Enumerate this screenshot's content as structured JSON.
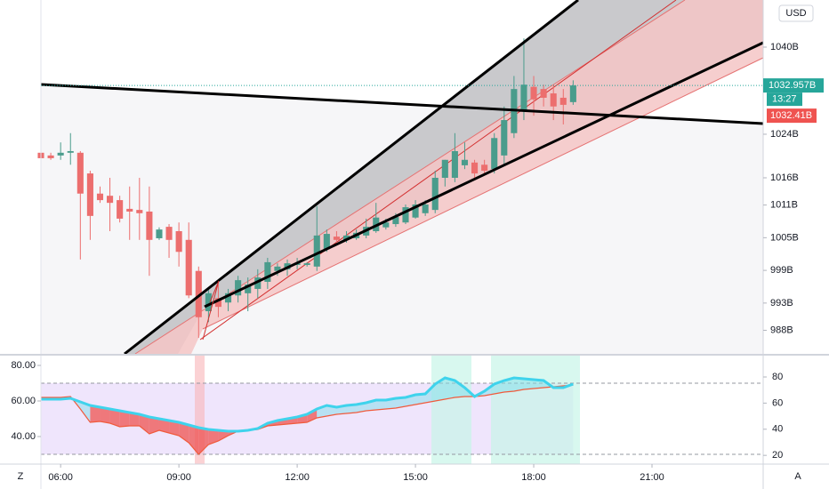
{
  "ui": {
    "currency": "USD",
    "zoom_button": "Z",
    "auto_button": "A"
  },
  "chart_data": [
    {
      "type": "candlestick",
      "x": [
        5.5,
        5.75,
        6,
        6.25,
        6.5,
        6.75,
        7,
        7.25,
        7.5,
        7.75,
        8,
        8.25,
        8.5,
        8.75,
        9,
        9.25,
        9.5,
        9.75,
        10,
        10.25,
        10.5,
        10.75,
        11,
        11.25,
        11.5,
        11.75,
        12,
        12.25,
        12.5,
        12.75,
        13,
        13.25,
        13.5,
        13.75,
        14,
        14.25,
        14.5,
        14.75,
        15,
        15.25,
        15.5,
        15.75,
        16,
        16.25,
        16.5,
        16.75,
        17,
        17.25,
        17.5,
        17.75,
        18,
        18.25,
        18.5,
        18.75,
        19
      ],
      "open": [
        1020.6,
        1020.1,
        1020.1,
        1020.6,
        1020.6,
        1016.8,
        1013.1,
        1012.7,
        1011.9,
        1010.3,
        1010.1,
        1009.8,
        1004.9,
        1007.0,
        1006.2,
        1004.6,
        998.9,
        991.5,
        993.9,
        993.1,
        994.4,
        994.8,
        995.6,
        996.9,
        998.9,
        999.2,
        1000.0,
        1000.0,
        999.7,
        1002.9,
        1005.2,
        1004.6,
        1004.9,
        1005.4,
        1006.2,
        1006.9,
        1007.5,
        1007.8,
        1008.7,
        1009.5,
        1010.1,
        1016.0,
        1016.0,
        1018.3,
        1018.8,
        1018.4,
        1017.6,
        1020.1,
        1024.2,
        1028.2,
        1032.7,
        1032.3,
        1031.5,
        1030.7,
        1029.9
      ],
      "high": [
        1023.3,
        1020.6,
        1022.5,
        1024.2,
        1020.9,
        1017.3,
        1014.4,
        1016.0,
        1012.7,
        1014.4,
        1016.0,
        1014.4,
        1006.9,
        1007.5,
        1007.8,
        1007.8,
        999.7,
        995.6,
        996.4,
        995.6,
        998.0,
        997.7,
        999.2,
        1001.3,
        1000.3,
        1001.0,
        1001.3,
        1000.5,
        1010.8,
        1006.5,
        1006.2,
        1006.2,
        1006.5,
        1008.5,
        1011.4,
        1008.5,
        1009.5,
        1011.1,
        1011.9,
        1011.9,
        1017.3,
        1019.3,
        1024.2,
        1022.5,
        1019.3,
        1019.3,
        1024.2,
        1029.1,
        1034.7,
        1041.6,
        1034.7,
        1033.1,
        1033.1,
        1032.3,
        1033.9
      ],
      "low": [
        1016.8,
        1019.3,
        1019.3,
        1018.4,
        1001.0,
        1004.6,
        1011.4,
        1006.2,
        1007.8,
        1004.6,
        1004.6,
        998.0,
        1004.6,
        1001.3,
        999.7,
        993.9,
        986.6,
        989.5,
        990.4,
        991.5,
        993.1,
        991.5,
        993.9,
        995.6,
        998.0,
        998.0,
        999.2,
        999.7,
        998.9,
        1002.4,
        1004.1,
        1004.1,
        1004.6,
        1004.9,
        1005.9,
        1006.5,
        1007.0,
        1007.5,
        1008.5,
        1009.0,
        1009.5,
        1014.4,
        1015.2,
        1017.6,
        1016.0,
        1016.8,
        1016.8,
        1018.4,
        1023.3,
        1026.6,
        1027.4,
        1029.1,
        1026.6,
        1025.8,
        1029.4
      ],
      "close": [
        1019.6,
        1019.6,
        1020.6,
        1020.9,
        1013.1,
        1009.0,
        1011.9,
        1011.4,
        1008.5,
        1009.8,
        1009.5,
        1004.6,
        1006.5,
        1004.6,
        1002.4,
        994.4,
        990.4,
        994.8,
        992.3,
        994.8,
        997.2,
        996.4,
        997.7,
        1000.5,
        999.7,
        1000.3,
        1000.3,
        1000.3,
        1005.4,
        1005.7,
        1004.6,
        1005.4,
        1005.9,
        1007.0,
        1008.7,
        1007.8,
        1008.8,
        1010.6,
        1011.1,
        1011.1,
        1016.0,
        1019.3,
        1020.9,
        1019.3,
        1016.8,
        1017.3,
        1023.3,
        1026.6,
        1032.3,
        1033.1,
        1030.4,
        1030.7,
        1029.1,
        1029.4,
        1032.957
      ],
      "up_color": "#4a9c8c",
      "down_color": "#ec6e6e",
      "xlim": [
        5.5,
        23.82
      ],
      "xticks": [
        {
          "value": 6,
          "label": "06:00"
        },
        {
          "value": 9,
          "label": "09:00"
        },
        {
          "value": 12,
          "label": "12:00"
        },
        {
          "value": 15,
          "label": "15:00"
        },
        {
          "value": 18,
          "label": "18:00"
        },
        {
          "value": 21,
          "label": "21:00"
        }
      ],
      "ylim": [
        983.67,
        1048.65
      ],
      "yticks": [
        {
          "value": 988,
          "label": "988B"
        },
        {
          "value": 993,
          "label": "993B"
        },
        {
          "value": 999,
          "label": "999B"
        },
        {
          "value": 1005,
          "label": "1005B"
        },
        {
          "value": 1011,
          "label": "1011B"
        },
        {
          "value": 1016,
          "label": "1016B"
        },
        {
          "value": 1024,
          "label": "1024B"
        },
        {
          "value": 1040,
          "label": "1040B"
        }
      ],
      "grid": false,
      "last_price": {
        "value": 1032.957,
        "label": "1032.957B"
      },
      "countdown": "13:27",
      "price_marker": {
        "value": 1032.41,
        "label": "1032.41B"
      }
    },
    {
      "type": "line",
      "x": [
        5.5,
        5.75,
        6,
        6.25,
        6.5,
        6.75,
        7,
        7.25,
        7.5,
        7.75,
        8,
        8.25,
        8.5,
        8.75,
        9,
        9.25,
        9.5,
        9.75,
        10,
        10.25,
        10.5,
        10.75,
        11,
        11.25,
        11.5,
        11.75,
        12,
        12.25,
        12.5,
        12.75,
        13,
        13.25,
        13.5,
        13.75,
        14,
        14.25,
        14.5,
        14.75,
        15,
        15.25,
        15.5,
        15.75,
        16,
        16.25,
        16.5,
        16.75,
        17,
        17.25,
        17.5,
        17.75,
        18,
        18.25,
        18.5,
        18.75,
        19
      ],
      "series": [
        {
          "color": "#f05a3c",
          "values": [
            62,
            62,
            62,
            62.5,
            55.5,
            48,
            48.5,
            47.5,
            45.5,
            46,
            46,
            41.5,
            43.5,
            42,
            40.5,
            36.5,
            30,
            35.5,
            37.5,
            40.5,
            43,
            43.5,
            44,
            46,
            46.5,
            47,
            47.5,
            48,
            50.5,
            51.5,
            52.5,
            53,
            53.5,
            54.5,
            55,
            55.5,
            56,
            57,
            58,
            59,
            60,
            61,
            62,
            62.5,
            62.5,
            63,
            64,
            65,
            65.5,
            66.5,
            67,
            67.5,
            68,
            68.5,
            69
          ]
        },
        {
          "color": "#3fd3ec",
          "values": [
            61,
            61,
            61,
            61.5,
            59.5,
            57.5,
            56.5,
            55.5,
            54.5,
            53.5,
            52.5,
            51,
            50,
            49,
            48,
            46.5,
            45,
            44,
            43.5,
            43,
            43,
            43.5,
            44.5,
            47.5,
            49,
            50,
            51,
            52.5,
            55.5,
            57.5,
            56.5,
            57.5,
            58,
            59,
            60.5,
            60.5,
            61.5,
            62,
            63.5,
            64,
            69.5,
            73,
            71.5,
            67.5,
            62.5,
            65.5,
            69.5,
            71.5,
            73,
            72.5,
            72,
            71.5,
            67.5,
            67.5,
            69.5
          ]
        }
      ],
      "ylim": [
        24.5,
        86.5
      ],
      "yticks": [
        {
          "value": 40,
          "label": "40.00"
        },
        {
          "value": 60,
          "label": "60.00"
        },
        {
          "value": 80,
          "label": "80.00"
        }
      ],
      "y2lim": [
        13.3,
        97.7
      ],
      "y2ticks": [
        20,
        40,
        60,
        80
      ],
      "levels": [
        30,
        70
      ]
    }
  ]
}
